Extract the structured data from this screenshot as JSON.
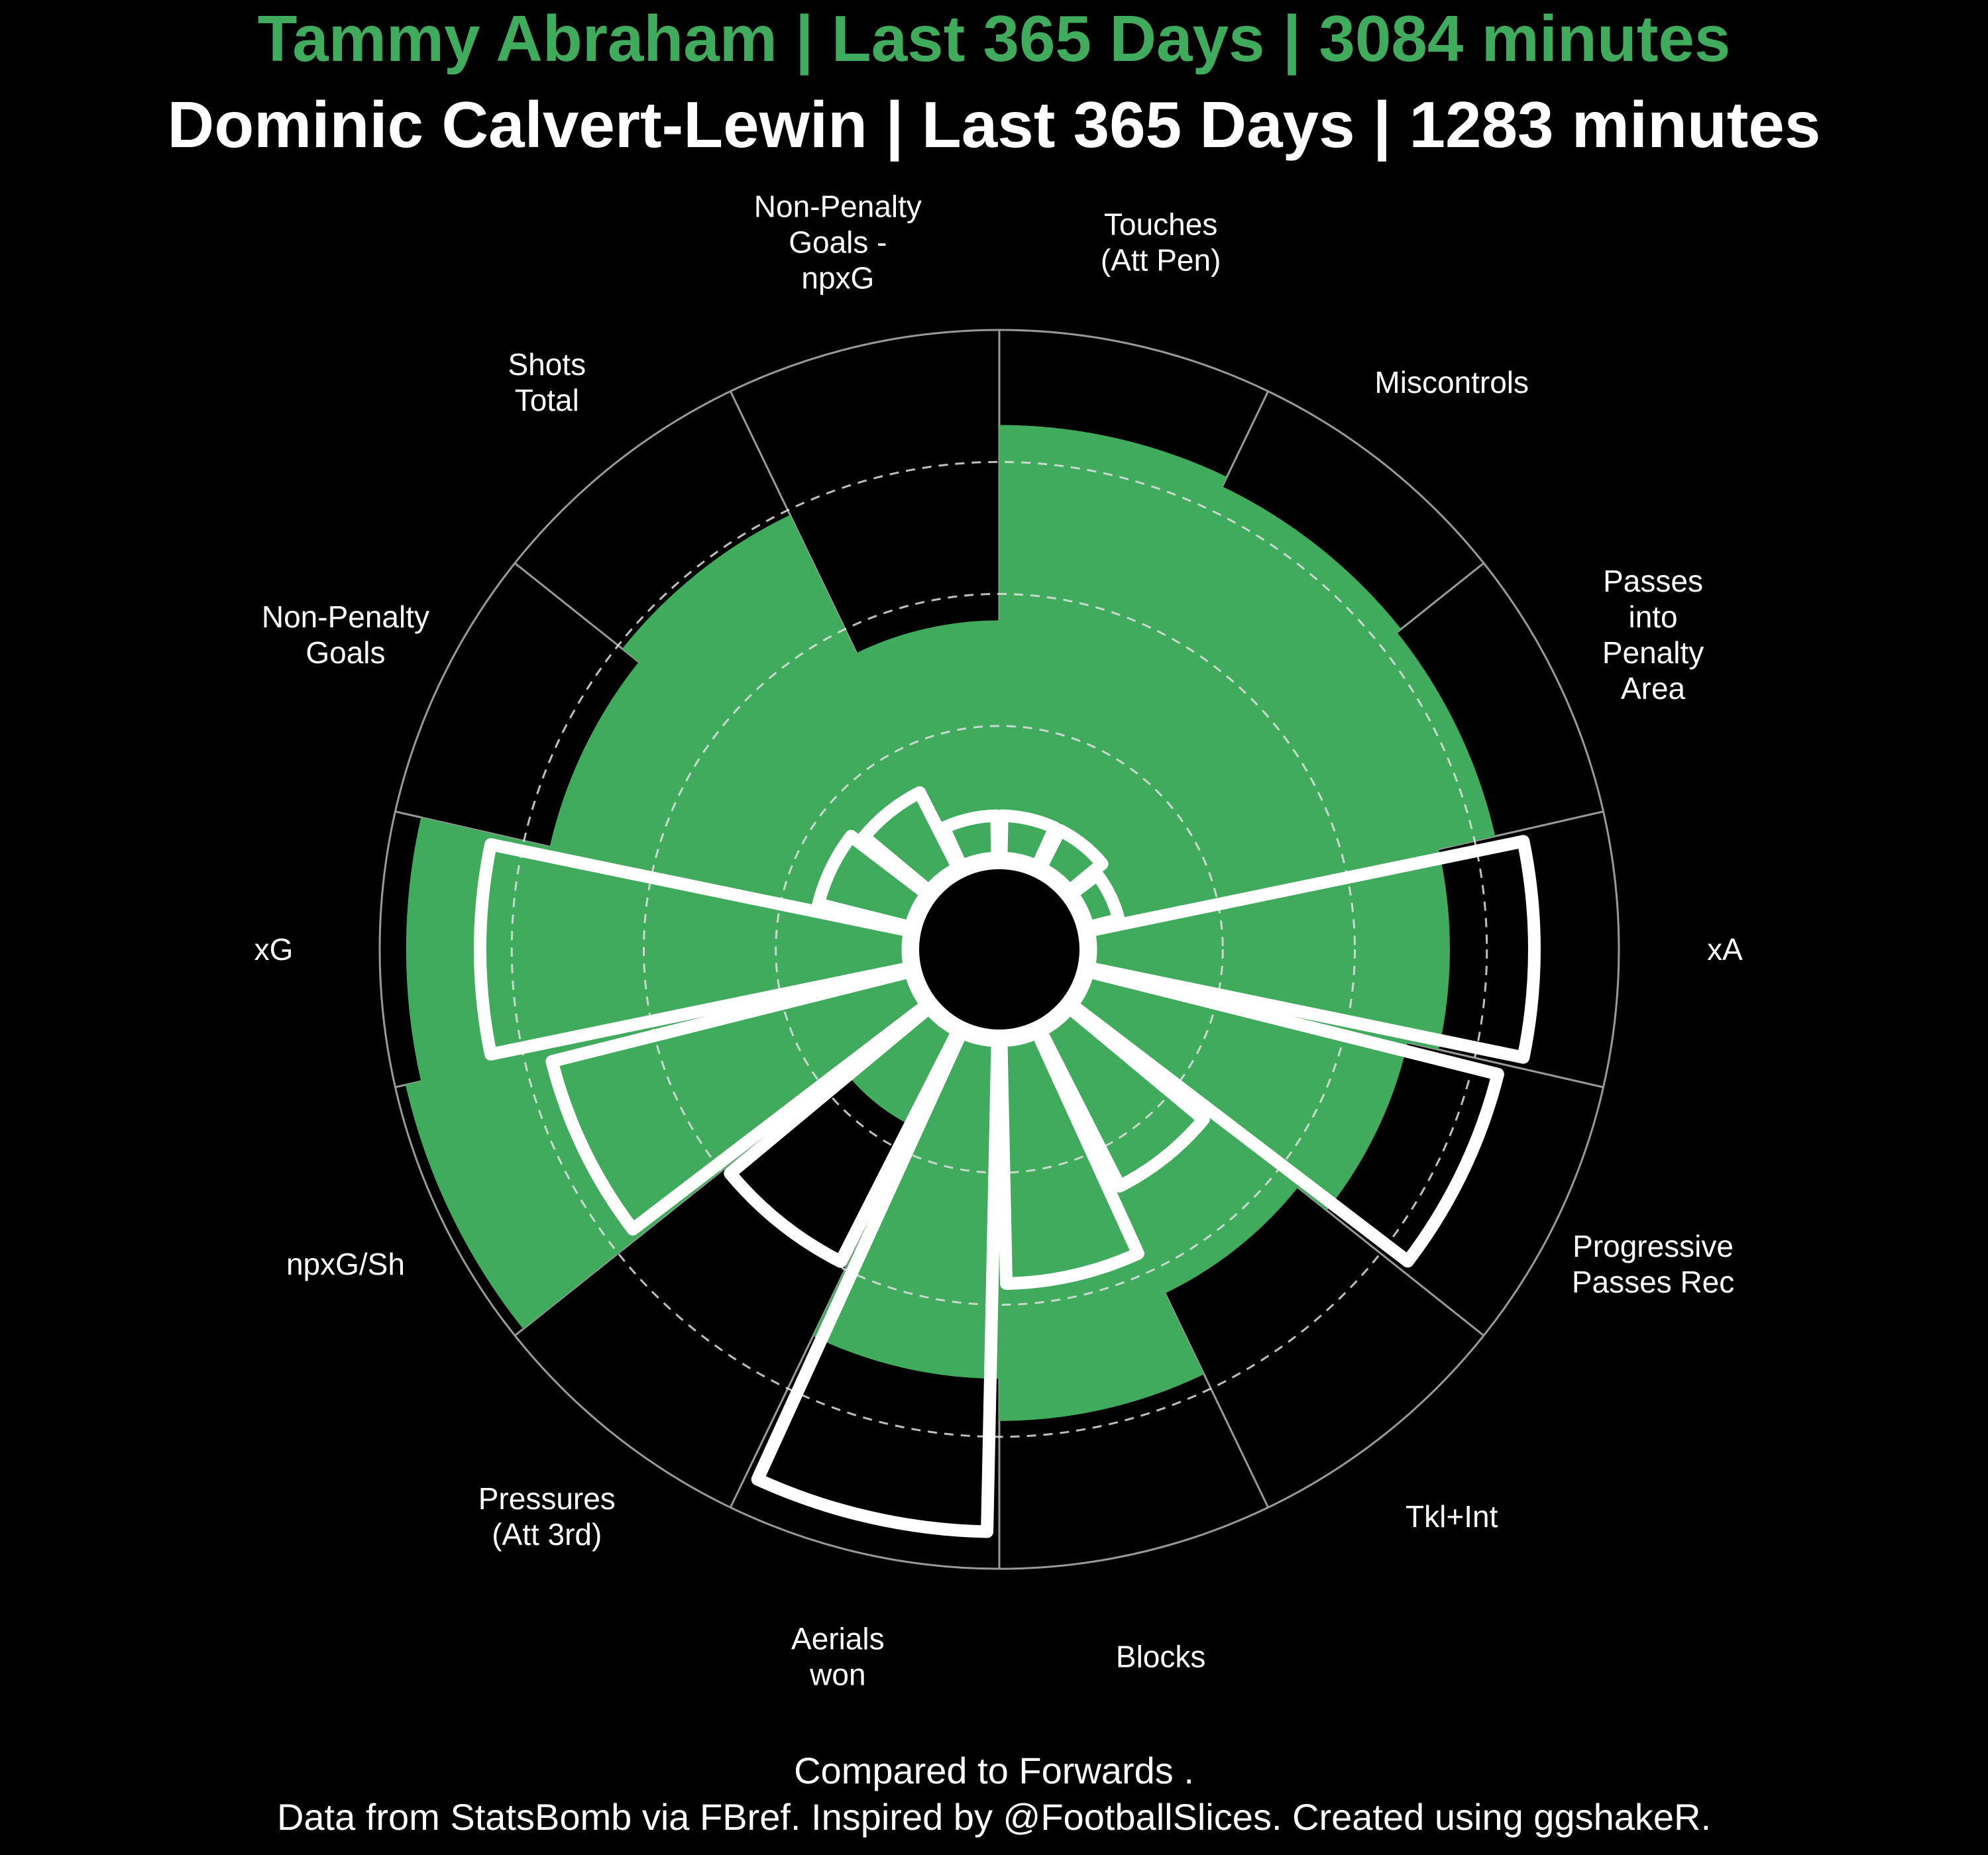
{
  "title_line1": "Tammy Abraham | Last 365 Days | 3084 minutes",
  "title_line2": "Dominic Calvert-Lewin | Last 365 Days | 1283 minutes",
  "caption_line1": "Compared to Forwards .",
  "caption_line2": "Data from StatsBomb via FBref. Inspired by @FootballSlices. Created using ggshakeR.",
  "colors": {
    "background": "#000000",
    "player1_fill": "#41ab5d",
    "player2_outline": "#ffffff",
    "grid": "#999999",
    "text": "#ffffff"
  },
  "chart_data": {
    "type": "polar-bar",
    "rlim": [
      0,
      100
    ],
    "grid_rings": [
      25,
      50,
      75
    ],
    "categories": [
      "Touches\n(Att Pen)",
      "Miscontrols",
      "Passes\ninto\nPenalty\nArea",
      "xA",
      "Progressive\nPasses Rec",
      "Tkl+Int",
      "Blocks",
      "Aerials\nwon",
      "Pressures\n(Att 3rd)",
      "npxG/Sh",
      "xG",
      "Non-Penalty\nGoals",
      "Shots\nTotal",
      "Non-Penalty\nGoals -\nnpxG"
    ],
    "series": [
      {
        "name": "Tammy Abraham",
        "style": "filled",
        "values": [
          82,
          80,
          79,
          68,
          62,
          55,
          72,
          64,
          20,
          98,
          95,
          70,
          74,
          45
        ]
      },
      {
        "name": "Dominic Calvert-Lewin",
        "style": "outline",
        "values": [
          8,
          8,
          6,
          84,
          80,
          33,
          46,
          93,
          49,
          70,
          81,
          18,
          16,
          8
        ]
      }
    ]
  }
}
